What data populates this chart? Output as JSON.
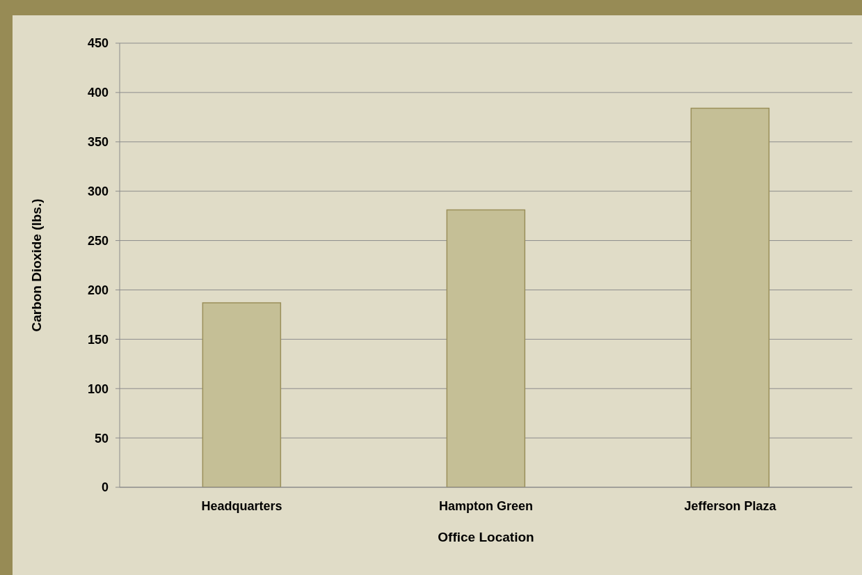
{
  "chart_data": {
    "type": "bar",
    "xlabel": "Office Location",
    "ylabel": "Carbon Dioxide (lbs.)",
    "categories": [
      "Headquarters",
      "Hampton Green",
      "Jefferson Plaza"
    ],
    "values": [
      187,
      281,
      384
    ],
    "color": "#c5bf96",
    "ylim": [
      0,
      450
    ],
    "yticks": [
      0,
      50,
      100,
      150,
      200,
      250,
      300,
      350,
      400,
      450
    ],
    "grid": "y"
  }
}
